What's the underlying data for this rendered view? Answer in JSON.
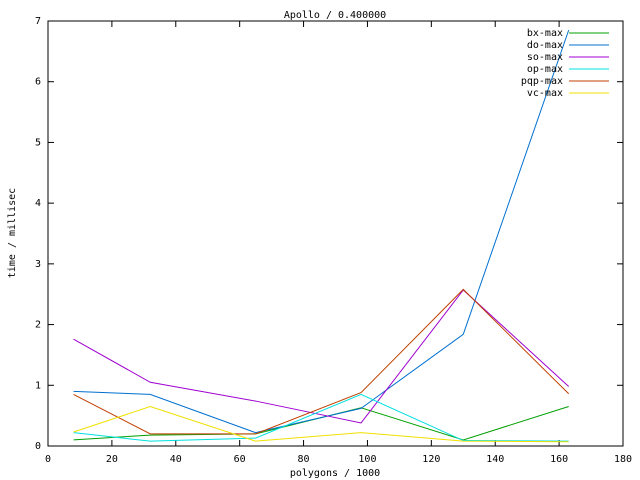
{
  "chart_data": {
    "type": "line",
    "title": "Apollo / 0.400000",
    "x_label": "polygons / 1000",
    "y_label": "time / millisec",
    "x": [
      8,
      32,
      65,
      98,
      130,
      163
    ],
    "series": [
      {
        "name": "bx-max",
        "color": "#00a000",
        "values": [
          0.1,
          0.18,
          0.2,
          0.63,
          0.1,
          0.65
        ]
      },
      {
        "name": "do-max",
        "color": "#0070d0",
        "values": [
          0.9,
          0.85,
          0.22,
          0.62,
          1.84,
          6.85
        ]
      },
      {
        "name": "so-max",
        "color": "#a000d0",
        "values": [
          1.76,
          1.05,
          0.74,
          0.38,
          2.57,
          0.98
        ]
      },
      {
        "name": "op-max",
        "color": "#00e0e0",
        "values": [
          0.22,
          0.08,
          0.13,
          0.85,
          0.09,
          0.08
        ]
      },
      {
        "name": "pqp-max",
        "color": "#c04000",
        "values": [
          0.85,
          0.2,
          0.2,
          0.88,
          2.58,
          0.86
        ]
      },
      {
        "name": "vc-max",
        "color": "#f0e000",
        "values": [
          0.23,
          0.65,
          0.08,
          0.22,
          0.08,
          0.07
        ]
      }
    ],
    "xlim": [
      0,
      180
    ],
    "xticks": [
      0,
      20,
      40,
      60,
      80,
      100,
      120,
      140,
      160,
      180
    ],
    "ylim": [
      0,
      7
    ],
    "yticks": [
      0,
      1,
      2,
      3,
      4,
      5,
      6,
      7
    ],
    "legend": "top-right"
  }
}
